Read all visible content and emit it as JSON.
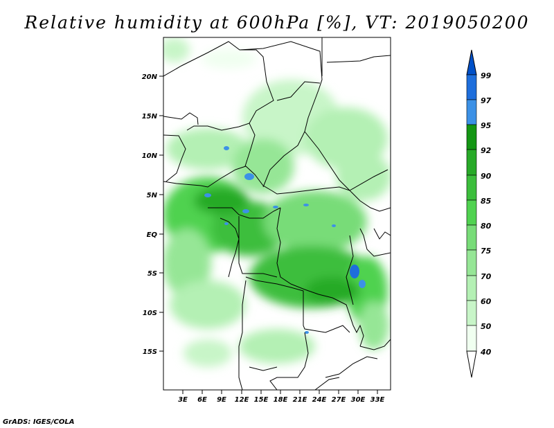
{
  "title": "Relative humidity at 600hPa [%], VT: 2019050200",
  "credit": "GrADS: IGES/COLA",
  "colors": {
    "c40": "#f0fff0",
    "c50": "#c8f5c8",
    "c60": "#b4f0b4",
    "c70": "#96e696",
    "c75": "#78dc78",
    "c80": "#50d250",
    "c85": "#3cbe3c",
    "c90": "#28aa28",
    "c92": "#149614",
    "c95": "#3c91e6",
    "c97": "#1e6edc",
    "c99": "#0050c8"
  },
  "map": {
    "lat_labels": [
      "20N",
      "15N",
      "10N",
      "5N",
      "EQ",
      "5S",
      "10S",
      "15S"
    ],
    "lon_labels": [
      "3E",
      "6E",
      "9E",
      "12E",
      "15E",
      "18E",
      "21E",
      "24E",
      "27E",
      "30E",
      "33E"
    ]
  },
  "colorbar": {
    "labels": [
      "40",
      "50",
      "60",
      "70",
      "75",
      "80",
      "85",
      "90",
      "92",
      "95",
      "97",
      "99"
    ]
  }
}
